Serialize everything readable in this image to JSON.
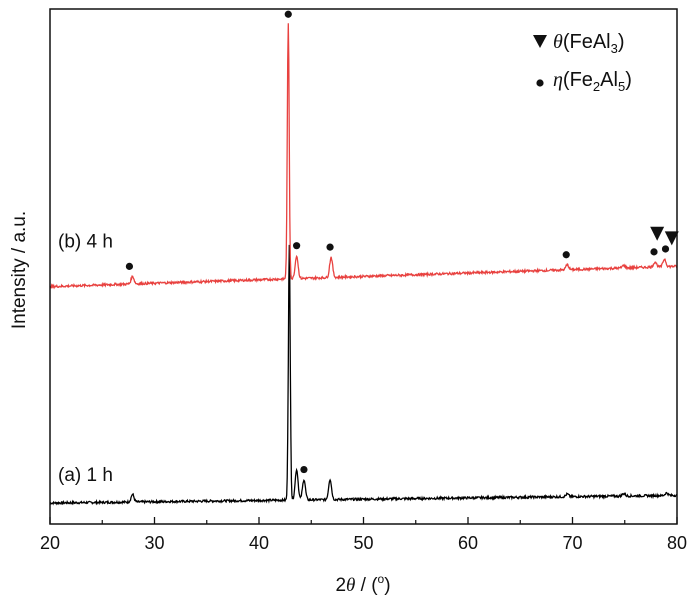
{
  "chart_data": {
    "type": "line",
    "xlabel_parts": [
      "2",
      "θ",
      " / (",
      "o",
      ")"
    ],
    "ylabel": "Intensity / a.u.",
    "xlim": [
      20,
      80
    ],
    "x_ticks": [
      "20",
      "30",
      "40",
      "50",
      "60",
      "70",
      "80"
    ],
    "y_ticks": [],
    "grid": false,
    "series": [
      {
        "label": "(a) 1 h",
        "color": "#000000",
        "baseline": 0.0,
        "baseline_end": 0.03,
        "peaks": [
          {
            "x": 27.9,
            "h": 0.03
          },
          {
            "x": 42.9,
            "h": 1.0
          },
          {
            "x": 43.6,
            "h": 0.12
          },
          {
            "x": 44.3,
            "h": 0.08
          },
          {
            "x": 46.8,
            "h": 0.08
          },
          {
            "x": 69.5,
            "h": 0.01
          },
          {
            "x": 74.9,
            "h": 0.01
          },
          {
            "x": 79.0,
            "h": 0.01
          }
        ],
        "markers": [
          {
            "x": 44.3,
            "symbol": "circle"
          }
        ]
      },
      {
        "label": "(b) 4 h",
        "color": "#e8413f",
        "baseline": 0.85,
        "baseline_end": 0.93,
        "peaks": [
          {
            "x": 27.9,
            "h": 0.03
          },
          {
            "x": 42.8,
            "h": 1.0
          },
          {
            "x": 43.6,
            "h": 0.09
          },
          {
            "x": 46.9,
            "h": 0.08
          },
          {
            "x": 69.5,
            "h": 0.02
          },
          {
            "x": 74.9,
            "h": 0.01
          },
          {
            "x": 77.9,
            "h": 0.02
          },
          {
            "x": 78.8,
            "h": 0.03
          }
        ],
        "markers": [
          {
            "x": 27.6,
            "symbol": "circle"
          },
          {
            "x": 42.8,
            "symbol": "circle"
          },
          {
            "x": 43.6,
            "symbol": "circle"
          },
          {
            "x": 46.8,
            "symbol": "circle"
          },
          {
            "x": 69.4,
            "symbol": "circle"
          },
          {
            "x": 77.8,
            "symbol": "circle"
          },
          {
            "x": 78.9,
            "symbol": "circle"
          },
          {
            "x": 78.1,
            "symbol": "triangle"
          },
          {
            "x": 79.5,
            "symbol": "triangle"
          }
        ]
      }
    ],
    "legend": {
      "placement": "top-right",
      "entries": [
        {
          "symbol": "triangle",
          "greek": "θ",
          "parts": [
            "(FeAl",
            "3",
            ")"
          ]
        },
        {
          "symbol": "circle",
          "greek": "η",
          "parts": [
            "(Fe",
            "2",
            "Al",
            "5",
            ")"
          ]
        }
      ]
    }
  }
}
